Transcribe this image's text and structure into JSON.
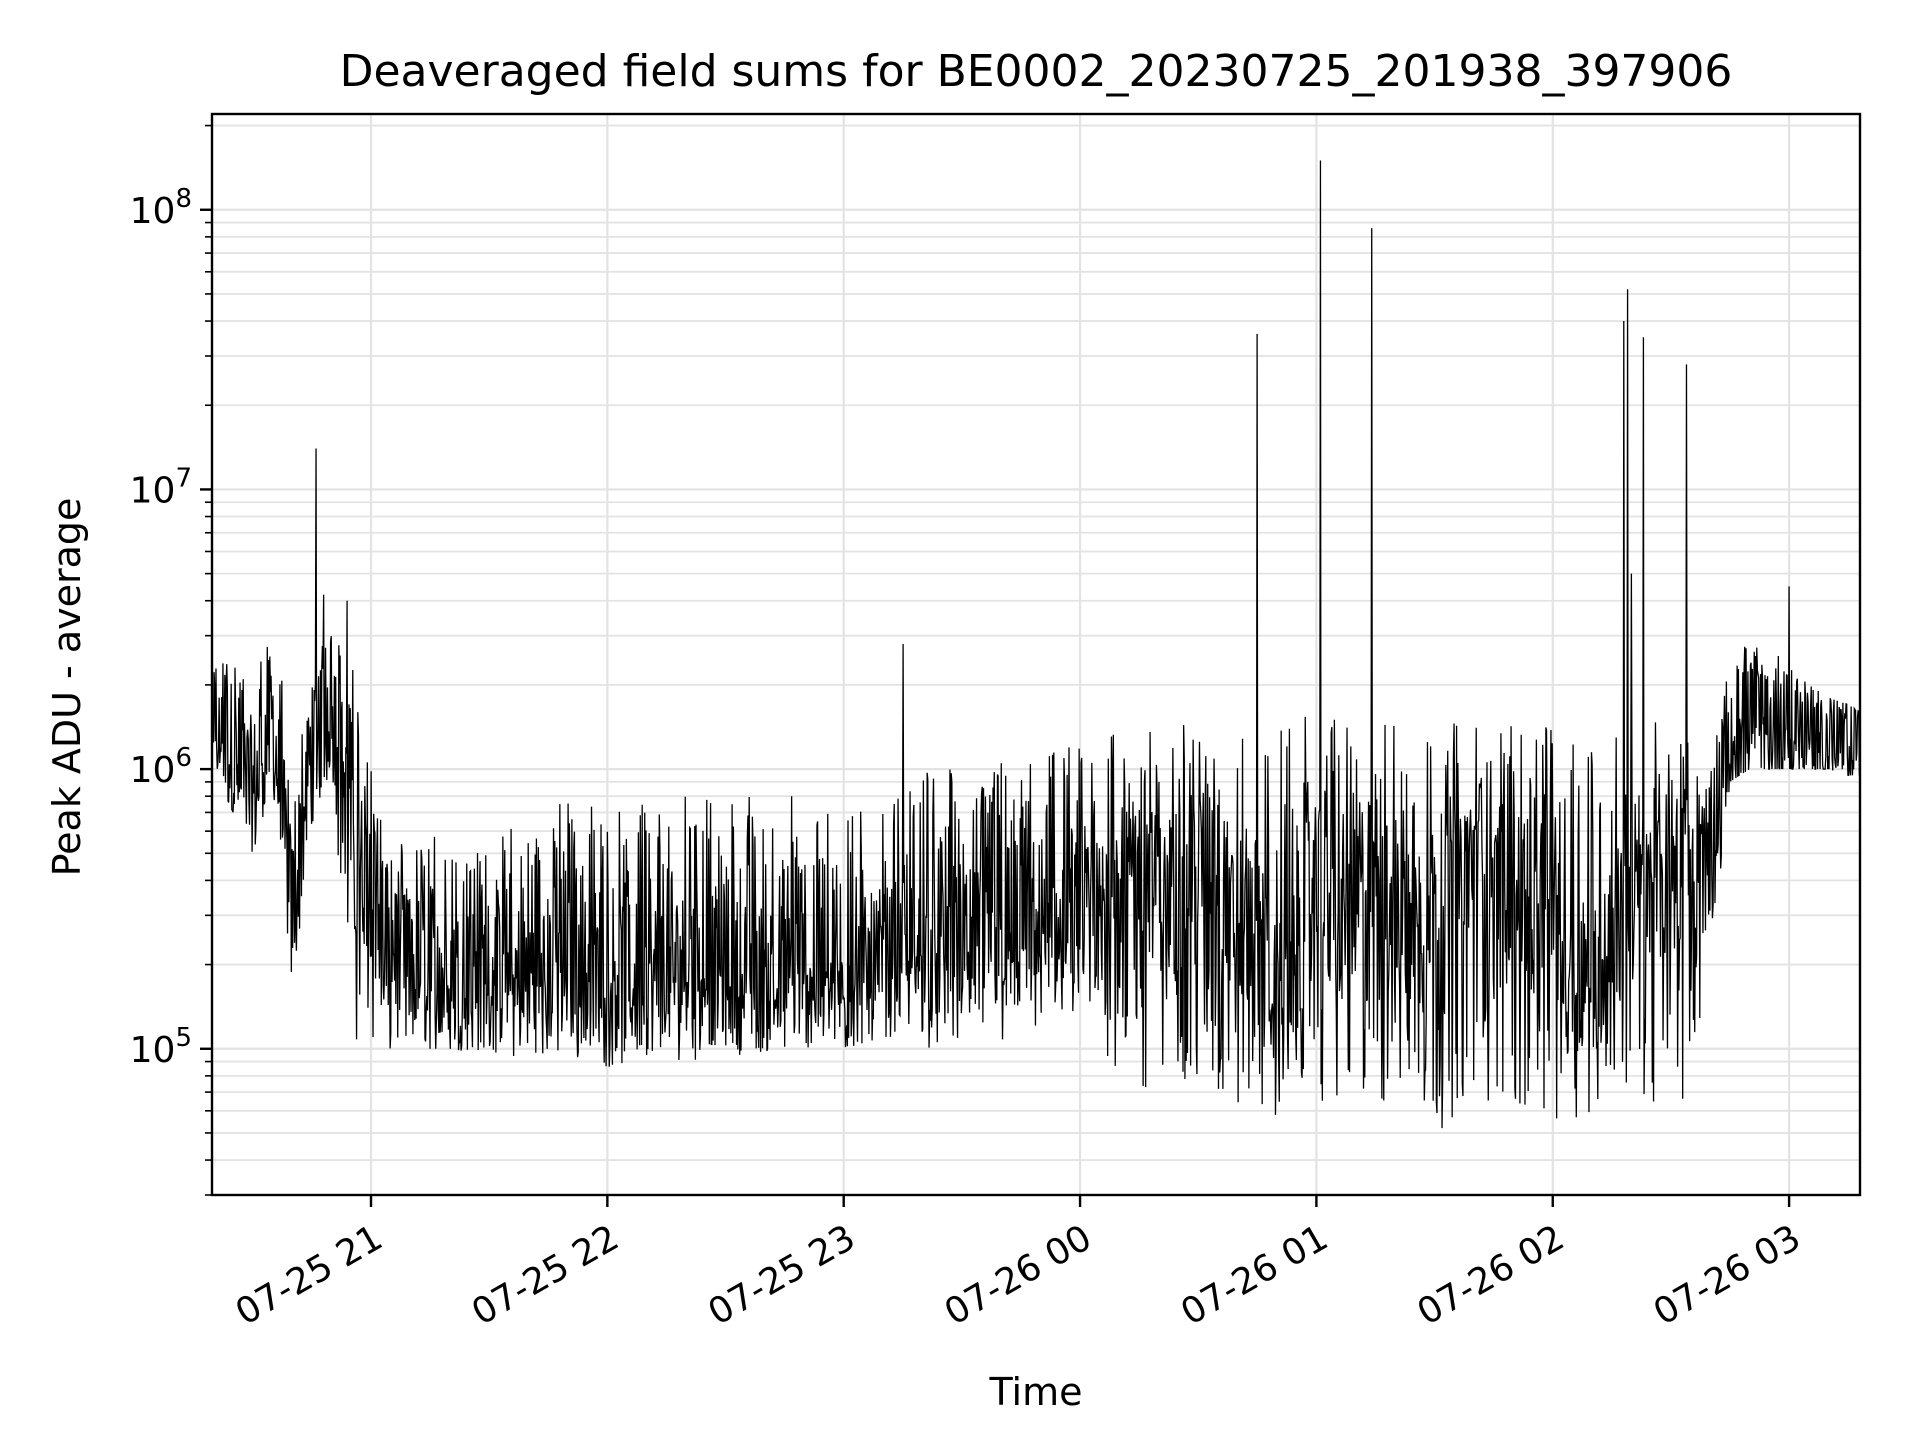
{
  "chart_data": {
    "type": "line",
    "title": "Deaveraged field sums for BE0002_20230725_201938_397906",
    "xlabel": "Time",
    "ylabel": "Peak ADU - average",
    "yscale": "log",
    "ylim": [
      30000,
      220000000
    ],
    "xlim": [
      "2023-07-25 20:19:38",
      "2023-07-26 03:18:00"
    ],
    "grid": true,
    "line_color": "#000000",
    "x_ticks": [
      {
        "value": "2023-07-25 21:00",
        "label": "07-25 21"
      },
      {
        "value": "2023-07-25 22:00",
        "label": "07-25 22"
      },
      {
        "value": "2023-07-25 23:00",
        "label": "07-25 23"
      },
      {
        "value": "2023-07-26 00:00",
        "label": "07-26 00"
      },
      {
        "value": "2023-07-26 01:00",
        "label": "07-26 01"
      },
      {
        "value": "2023-07-26 02:00",
        "label": "07-26 02"
      },
      {
        "value": "2023-07-26 03:00",
        "label": "07-26 03"
      }
    ],
    "y_ticks": [
      {
        "value": 100000,
        "base": "10",
        "exp": "5"
      },
      {
        "value": 1000000,
        "base": "10",
        "exp": "6"
      },
      {
        "value": 10000000,
        "base": "10",
        "exp": "7"
      },
      {
        "value": 100000000,
        "base": "10",
        "exp": "8"
      }
    ],
    "series": [
      {
        "x": [
          "2023-07-25 20:20",
          "2023-07-25 20:25",
          "2023-07-25 20:30",
          "2023-07-25 20:35",
          "2023-07-25 20:40",
          "2023-07-25 20:45",
          "2023-07-25 20:50",
          "2023-07-25 20:55",
          "2023-07-25 21:00",
          "2023-07-25 21:05",
          "2023-07-25 21:10",
          "2023-07-25 21:15",
          "2023-07-25 21:20",
          "2023-07-25 21:30",
          "2023-07-25 21:40",
          "2023-07-25 21:50",
          "2023-07-25 22:00",
          "2023-07-25 22:10",
          "2023-07-25 22:20",
          "2023-07-25 22:30",
          "2023-07-25 22:40",
          "2023-07-25 22:50",
          "2023-07-25 23:00",
          "2023-07-25 23:10",
          "2023-07-25 23:15",
          "2023-07-25 23:20",
          "2023-07-25 23:30",
          "2023-07-25 23:40",
          "2023-07-25 23:50",
          "2023-07-26 00:00",
          "2023-07-26 00:05",
          "2023-07-26 00:10",
          "2023-07-26 00:15",
          "2023-07-26 00:20",
          "2023-07-26 00:25",
          "2023-07-26 00:30",
          "2023-07-26 00:35",
          "2023-07-26 00:40",
          "2023-07-26 00:45",
          "2023-07-26 00:50",
          "2023-07-26 00:55",
          "2023-07-26 01:00",
          "2023-07-26 01:05",
          "2023-07-26 01:10",
          "2023-07-26 01:15",
          "2023-07-26 01:20",
          "2023-07-26 01:25",
          "2023-07-26 01:30",
          "2023-07-26 01:35",
          "2023-07-26 01:40",
          "2023-07-26 01:45",
          "2023-07-26 01:50",
          "2023-07-26 01:55",
          "2023-07-26 02:00",
          "2023-07-26 02:05",
          "2023-07-26 02:10",
          "2023-07-26 02:15",
          "2023-07-26 02:20",
          "2023-07-26 02:25",
          "2023-07-26 02:30",
          "2023-07-26 02:35",
          "2023-07-26 02:40",
          "2023-07-26 02:45",
          "2023-07-26 02:50",
          "2023-07-26 02:55",
          "2023-07-26 03:00",
          "2023-07-26 03:05",
          "2023-07-26 03:10",
          "2023-07-26 03:15",
          "2023-07-26 03:18"
        ],
        "y": [
          1600000,
          1100000,
          800000,
          1500000,
          300000,
          1200000,
          2000000,
          500000,
          400000,
          250000,
          200000,
          180000,
          170000,
          190000,
          180000,
          200000,
          190000,
          180000,
          200000,
          190000,
          180000,
          190000,
          170000,
          200000,
          220000,
          210000,
          230000,
          240000,
          250000,
          280000,
          300000,
          450000,
          500000,
          350000,
          400000,
          450000,
          500000,
          250000,
          300000,
          150000,
          200000,
          400000,
          250000,
          350000,
          450000,
          300000,
          300000,
          350000,
          400000,
          500000,
          500000,
          350000,
          250000,
          400000,
          200000,
          180000,
          250000,
          300000,
          350000,
          400000,
          450000,
          500000,
          1200000,
          1300000,
          1300000,
          1250000,
          1200000,
          1200000,
          1200000,
          1200000
        ],
        "band_low": [
          1000000,
          700000,
          500000,
          900000,
          160000,
          600000,
          1000000,
          110000,
          100000,
          90000,
          90000,
          100000,
          100000,
          95000,
          90000,
          90000,
          85000,
          90000,
          90000,
          95000,
          95000,
          95000,
          100000,
          110000,
          110000,
          100000,
          100000,
          100000,
          110000,
          110000,
          90000,
          80000,
          60000,
          70000,
          80000,
          70000,
          60000,
          55000,
          55000,
          55000,
          60000,
          60000,
          65000,
          55000,
          55000,
          70000,
          55000,
          50000,
          55000,
          60000,
          60000,
          55000,
          55000,
          50000,
          55000,
          60000,
          65000,
          70000,
          60000,
          60000,
          70000,
          200000,
          900000,
          1000000,
          1000000,
          1000000,
          1000000,
          1000000,
          950000,
          950000
        ],
        "band_high": [
          2200000,
          3000000,
          2500000,
          3500000,
          1200000,
          2500000,
          3000000,
          2800000,
          1000000,
          600000,
          500000,
          600000,
          500000,
          600000,
          700000,
          800000,
          700000,
          800000,
          800000,
          800000,
          900000,
          800000,
          700000,
          800000,
          900000,
          1000000,
          1000000,
          1100000,
          1200000,
          1200000,
          1200000,
          1400000,
          1500000,
          1500000,
          1500000,
          1600000,
          1600000,
          1600000,
          1600000,
          1600000,
          1600000,
          1700000,
          1600000,
          1500000,
          1500000,
          1500000,
          1400000,
          1400000,
          1500000,
          1500000,
          1500000,
          1500000,
          1500000,
          1500000,
          1400000,
          1400000,
          1400000,
          1500000,
          1500000,
          1400000,
          1300000,
          1300000,
          2500000,
          3000000,
          2800000,
          2300000,
          2000000,
          1800000,
          1700000,
          1600000
        ],
        "spikes": [
          {
            "x": "2023-07-25 20:46",
            "y": 14000000
          },
          {
            "x": "2023-07-25 20:48",
            "y": 4200000
          },
          {
            "x": "2023-07-25 20:54",
            "y": 4000000
          },
          {
            "x": "2023-07-25 23:15",
            "y": 2800000
          },
          {
            "x": "2023-07-26 00:45",
            "y": 36000000
          },
          {
            "x": "2023-07-26 01:01",
            "y": 150000000
          },
          {
            "x": "2023-07-26 01:14",
            "y": 86000000
          },
          {
            "x": "2023-07-26 02:18",
            "y": 40000000
          },
          {
            "x": "2023-07-26 02:19",
            "y": 52000000
          },
          {
            "x": "2023-07-26 02:20",
            "y": 5000000
          },
          {
            "x": "2023-07-26 02:23",
            "y": 35000000
          },
          {
            "x": "2023-07-26 02:34",
            "y": 28000000
          },
          {
            "x": "2023-07-26 03:00",
            "y": 4500000
          }
        ]
      }
    ]
  }
}
